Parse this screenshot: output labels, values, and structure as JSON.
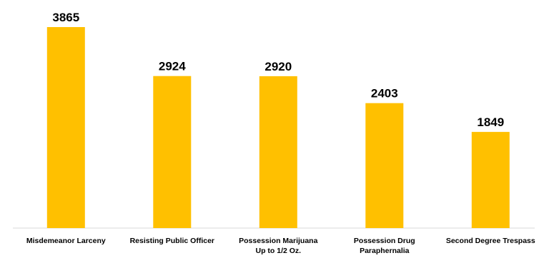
{
  "chart_data": {
    "type": "bar",
    "categories": [
      [
        "Misdemeanor Larceny"
      ],
      [
        "Resisting Public Officer"
      ],
      [
        "Possession Marijuana",
        "Up to 1/2 Oz."
      ],
      [
        "Possession Drug",
        "Paraphernalia"
      ],
      [
        "Second Degree Trespass"
      ]
    ],
    "values": [
      3865,
      2924,
      2920,
      2403,
      1849
    ],
    "value_labels": [
      "3865",
      "2924",
      "2920",
      "2403",
      "1849"
    ],
    "bar_color": "#FFC000",
    "grid": false,
    "legend": "none"
  }
}
